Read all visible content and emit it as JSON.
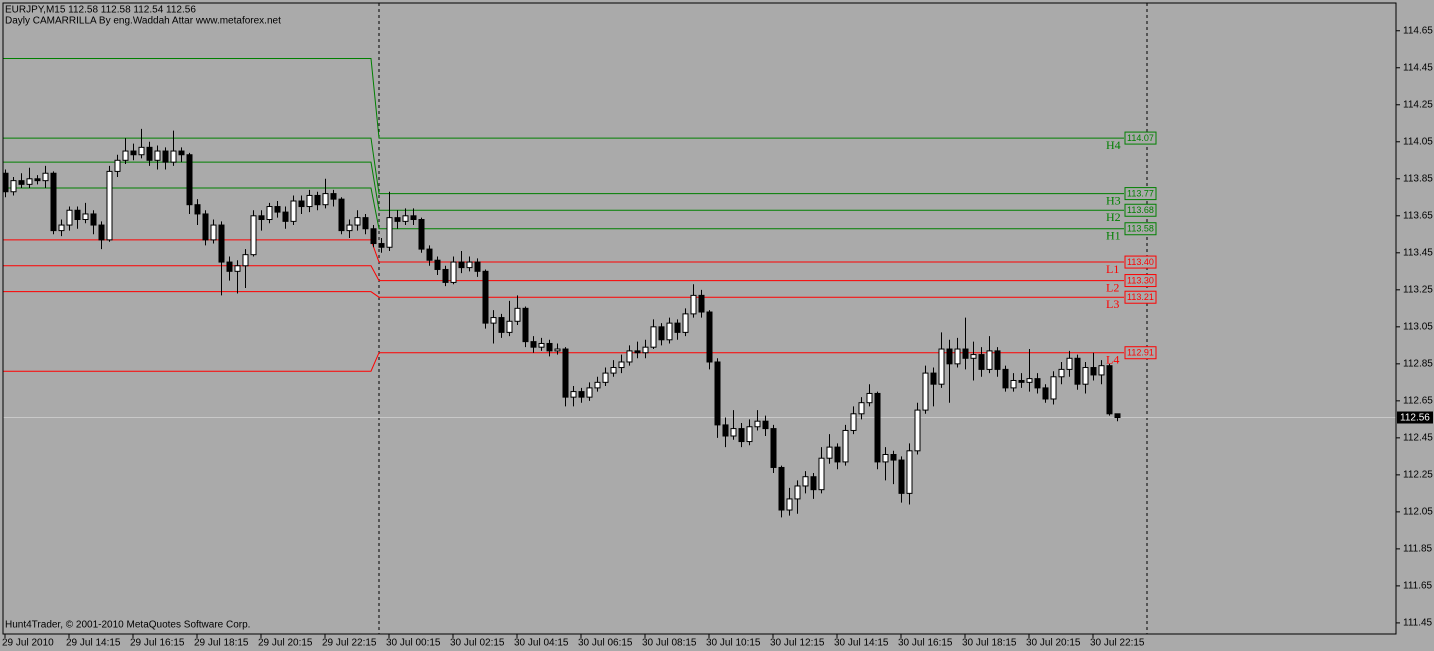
{
  "chart_data": {
    "type": "candlestick",
    "title": "EURJPY,M15  112.58 112.58 112.54 112.56",
    "subtitle": "Dayly CAMARRILLA By eng.Waddah Attar www.metaforex.net",
    "footer": "Hunt4Trader, © 2001-2010 MetaQuotes Software Corp.",
    "categories": [
      "29 Jul 2010",
      null,
      null,
      null,
      null,
      null,
      null,
      null,
      "29 Jul 14:15",
      null,
      null,
      null,
      null,
      null,
      null,
      null,
      "29 Jul 16:15",
      null,
      null,
      null,
      null,
      null,
      null,
      null,
      "29 Jul 18:15",
      null,
      null,
      null,
      null,
      null,
      null,
      null,
      "29 Jul 20:15",
      null,
      null,
      null,
      null,
      null,
      null,
      null,
      "29 Jul 22:15",
      null,
      null,
      null,
      null,
      null,
      null,
      null,
      "30 Jul 00:15",
      null,
      null,
      null,
      null,
      null,
      null,
      null,
      "30 Jul 02:15",
      null,
      null,
      null,
      null,
      null,
      null,
      null,
      "30 Jul 04:15",
      null,
      null,
      null,
      null,
      null,
      null,
      null,
      "30 Jul 06:15",
      null,
      null,
      null,
      null,
      null,
      null,
      null,
      "30 Jul 08:15",
      null,
      null,
      null,
      null,
      null,
      null,
      null,
      "30 Jul 10:15",
      null,
      null,
      null,
      null,
      null,
      null,
      null,
      "30 Jul 12:15",
      null,
      null,
      null,
      null,
      null,
      null,
      null,
      "30 Jul 14:15",
      null,
      null,
      null,
      null,
      null,
      null,
      null,
      "30 Jul 16:15",
      null,
      null,
      null,
      null,
      null,
      null,
      null,
      "30 Jul 18:15",
      null,
      null,
      null,
      null,
      null,
      null,
      null,
      "30 Jul 20:15",
      null,
      null,
      null,
      null,
      null,
      null,
      null,
      "30 Jul 22:15",
      null,
      null,
      null
    ],
    "open": [
      113.88,
      113.78,
      113.84,
      113.82,
      113.85,
      113.84,
      113.88,
      113.57,
      113.6,
      113.68,
      113.63,
      113.66,
      113.6,
      113.52,
      113.89,
      113.95,
      114.0,
      113.98,
      114.02,
      113.95,
      114.0,
      113.94,
      114.0,
      113.98,
      113.71,
      113.66,
      113.52,
      113.6,
      113.4,
      113.35,
      113.38,
      113.44,
      113.65,
      113.63,
      113.7,
      113.67,
      113.62,
      113.73,
      113.7,
      113.76,
      113.71,
      113.77,
      113.74,
      113.57,
      113.6,
      113.64,
      113.58,
      113.5,
      113.48,
      113.64,
      113.62,
      113.65,
      113.63,
      113.47,
      113.41,
      113.36,
      113.29,
      113.4,
      113.37,
      113.4,
      113.35,
      113.07,
      113.1,
      113.02,
      113.08,
      113.15,
      112.97,
      112.94,
      112.96,
      112.92,
      112.93,
      112.67,
      112.7,
      112.67,
      112.72,
      112.75,
      112.8,
      112.83,
      112.86,
      112.92,
      112.91,
      112.94,
      113.05,
      112.98,
      113.07,
      113.02,
      113.12,
      113.22,
      113.13,
      112.86,
      112.52,
      112.46,
      112.5,
      112.43,
      112.51,
      112.54,
      112.5,
      112.29,
      112.06,
      112.12,
      112.19,
      112.24,
      112.17,
      112.34,
      112.4,
      112.32,
      112.49,
      112.58,
      112.64,
      112.69,
      112.32,
      112.36,
      112.33,
      112.15,
      112.38,
      112.6,
      112.8,
      112.74,
      112.93,
      112.85,
      112.93,
      112.88,
      112.9,
      112.82,
      112.92,
      112.82,
      112.72,
      112.76,
      112.75,
      112.77,
      112.72,
      112.66,
      112.78,
      112.82,
      112.88,
      112.74,
      112.83,
      112.79,
      112.84,
      112.58
    ],
    "high": [
      113.9,
      113.86,
      113.88,
      113.91,
      113.87,
      113.92,
      113.89,
      113.63,
      113.7,
      113.7,
      113.72,
      113.68,
      113.62,
      113.92,
      113.98,
      114.07,
      114.04,
      114.12,
      114.05,
      114.03,
      114.02,
      114.11,
      114.02,
      113.99,
      113.74,
      113.68,
      113.63,
      113.62,
      113.43,
      113.41,
      113.47,
      113.68,
      113.68,
      113.72,
      113.73,
      113.7,
      113.76,
      113.76,
      113.79,
      113.78,
      113.85,
      113.79,
      113.75,
      113.63,
      113.68,
      113.66,
      113.6,
      113.53,
      113.78,
      113.68,
      113.69,
      113.69,
      113.64,
      113.49,
      113.43,
      113.38,
      113.43,
      113.46,
      113.43,
      113.42,
      113.36,
      113.14,
      113.12,
      113.19,
      113.22,
      113.16,
      113.0,
      112.99,
      112.98,
      112.96,
      112.94,
      112.73,
      112.72,
      112.75,
      112.78,
      112.83,
      112.87,
      112.9,
      112.95,
      112.97,
      112.98,
      113.09,
      113.07,
      113.1,
      113.09,
      113.15,
      113.28,
      113.25,
      113.14,
      112.88,
      112.56,
      112.6,
      112.53,
      112.55,
      112.6,
      112.57,
      112.52,
      112.3,
      112.18,
      112.22,
      112.27,
      112.26,
      112.4,
      112.47,
      112.42,
      112.52,
      112.62,
      112.67,
      112.74,
      112.7,
      112.4,
      112.38,
      112.35,
      112.42,
      112.64,
      112.84,
      112.83,
      113.02,
      112.98,
      112.99,
      113.1,
      112.97,
      112.94,
      113.0,
      112.94,
      112.84,
      112.8,
      112.8,
      112.93,
      112.8,
      112.74,
      112.81,
      112.86,
      112.92,
      112.9,
      112.86,
      112.91,
      112.87,
      112.85,
      112.58
    ],
    "low": [
      113.75,
      113.76,
      113.8,
      113.8,
      113.82,
      113.8,
      113.55,
      113.54,
      113.57,
      113.58,
      113.61,
      113.55,
      113.47,
      113.51,
      113.86,
      113.93,
      113.95,
      113.96,
      113.92,
      113.9,
      113.9,
      113.92,
      113.94,
      113.66,
      113.6,
      113.49,
      113.5,
      113.22,
      113.3,
      113.23,
      113.26,
      113.43,
      113.57,
      113.61,
      113.64,
      113.58,
      113.6,
      113.66,
      113.67,
      113.68,
      113.69,
      113.7,
      113.55,
      113.53,
      113.57,
      113.55,
      113.48,
      113.45,
      113.46,
      113.58,
      113.6,
      113.6,
      113.45,
      113.38,
      113.33,
      113.27,
      113.28,
      113.34,
      113.35,
      113.32,
      113.04,
      112.96,
      112.99,
      113.0,
      113.06,
      112.94,
      112.91,
      112.92,
      112.89,
      112.9,
      112.62,
      112.62,
      112.64,
      112.65,
      112.7,
      112.73,
      112.78,
      112.8,
      112.84,
      112.88,
      112.88,
      112.93,
      112.95,
      112.96,
      112.98,
      113.0,
      113.1,
      113.1,
      112.82,
      112.45,
      112.4,
      112.44,
      112.4,
      112.41,
      112.49,
      112.46,
      112.26,
      112.02,
      112.03,
      112.04,
      112.15,
      112.12,
      112.15,
      112.31,
      112.28,
      112.3,
      112.47,
      112.55,
      112.62,
      112.28,
      112.22,
      112.2,
      112.1,
      112.09,
      112.36,
      112.58,
      112.62,
      112.72,
      112.64,
      112.83,
      112.82,
      112.76,
      112.78,
      112.8,
      112.78,
      112.7,
      112.7,
      112.72,
      112.7,
      112.69,
      112.64,
      112.63,
      112.74,
      112.78,
      112.71,
      112.69,
      112.76,
      112.74,
      112.57,
      112.54
    ],
    "close": [
      113.78,
      113.84,
      113.82,
      113.85,
      113.84,
      113.88,
      113.57,
      113.6,
      113.68,
      113.63,
      113.66,
      113.6,
      113.52,
      113.89,
      113.95,
      114.0,
      113.98,
      114.02,
      113.95,
      114.0,
      113.94,
      114.0,
      113.98,
      113.71,
      113.66,
      113.52,
      113.6,
      113.4,
      113.35,
      113.38,
      113.44,
      113.65,
      113.63,
      113.7,
      113.67,
      113.62,
      113.73,
      113.7,
      113.76,
      113.71,
      113.77,
      113.74,
      113.57,
      113.6,
      113.64,
      113.58,
      113.5,
      113.48,
      113.64,
      113.62,
      113.65,
      113.63,
      113.47,
      113.41,
      113.36,
      113.29,
      113.4,
      113.37,
      113.4,
      113.35,
      113.07,
      113.1,
      113.02,
      113.08,
      113.15,
      112.97,
      112.94,
      112.96,
      112.92,
      112.93,
      112.67,
      112.7,
      112.67,
      112.72,
      112.75,
      112.8,
      112.83,
      112.86,
      112.92,
      112.91,
      112.94,
      113.05,
      112.98,
      113.07,
      113.02,
      113.12,
      113.22,
      113.13,
      112.86,
      112.52,
      112.46,
      112.5,
      112.43,
      112.51,
      112.54,
      112.5,
      112.29,
      112.06,
      112.12,
      112.19,
      112.24,
      112.17,
      112.34,
      112.4,
      112.32,
      112.49,
      112.58,
      112.64,
      112.69,
      112.32,
      112.36,
      112.33,
      112.15,
      112.38,
      112.6,
      112.8,
      112.74,
      112.93,
      112.85,
      112.93,
      112.88,
      112.9,
      112.82,
      112.92,
      112.82,
      112.72,
      112.76,
      112.75,
      112.77,
      112.72,
      112.66,
      112.78,
      112.82,
      112.88,
      112.74,
      112.83,
      112.79,
      112.84,
      112.58,
      112.56
    ],
    "up_color": "#ffffff",
    "down_color": "#000000",
    "ylim": [
      111.39,
      114.8
    ],
    "yticks": [
      114.65,
      114.45,
      114.25,
      114.05,
      113.85,
      113.65,
      113.45,
      113.25,
      113.05,
      112.85,
      112.65,
      112.45,
      112.25,
      112.05,
      111.85,
      111.65,
      111.45
    ],
    "current_price": 112.56,
    "levels": {
      "names": [
        "H4",
        "H3",
        "H2",
        "H1",
        "L1",
        "L2",
        "L3",
        "L4"
      ],
      "values": [
        114.07,
        113.77,
        113.68,
        113.58,
        113.4,
        113.3,
        113.21,
        112.91
      ],
      "value_labels": [
        "114.07",
        "113.77",
        "113.68",
        "113.58",
        "113.40",
        "113.30",
        "113.21",
        "112.91"
      ],
      "previous_values": [
        114.5,
        114.07,
        113.94,
        113.8,
        113.52,
        113.38,
        113.24,
        112.81
      ],
      "colors": [
        "#008000",
        "#008000",
        "#008000",
        "#008000",
        "#ff0000",
        "#ff0000",
        "#ff0000",
        "#ff0000"
      ]
    }
  }
}
